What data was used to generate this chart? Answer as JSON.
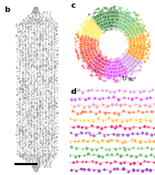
{
  "background_color": "#ffffff",
  "label_b": "b",
  "label_c": "c",
  "label_d": "d",
  "rotation_label": "90°",
  "ring_colors_cw": [
    "#228B22",
    "#228B22",
    "#4CAF50",
    "#66BB6A",
    "#8BC34A",
    "#CDDC39",
    "#FFEB3B",
    "#FFEB3B",
    "#FDD835",
    "#FFB300",
    "#FFA000",
    "#FF8F00",
    "#FF7043",
    "#FF5722",
    "#F44336",
    "#EF5350",
    "#E91E63",
    "#E91E63",
    "#D81B60",
    "#AB47BC",
    "#9C27B0",
    "#8E24AA",
    "#CE93D8",
    "#F48FB1",
    "#F8BBD0",
    "#FFD54F",
    "#FFCA28"
  ],
  "side_row_colors": [
    [
      "#CE93D8",
      "#F48FB1",
      "#CE93D8",
      "#AB47BC",
      "#9C27B0",
      "#CE93D8",
      "#F48FB1",
      "#E040FB",
      "#CE93D8",
      "#AB47BC",
      "#9C27B0",
      "#CE93D8",
      "#F48FB1",
      "#AB47BC",
      "#9C27B0"
    ],
    [
      "#FF7043",
      "#FF8A65",
      "#FF7043",
      "#FF5722",
      "#F4511E",
      "#FF7043",
      "#FF8A65",
      "#FF7043",
      "#FF5722",
      "#F4511E",
      "#FF7043",
      "#FF8A65",
      "#FF7043",
      "#FF5722",
      "#F4511E"
    ],
    [
      "#FFCA28",
      "#FFD54F",
      "#FFCA28",
      "#FFB300",
      "#FFA000",
      "#FFCA28",
      "#FFD54F",
      "#FFCA28",
      "#FFB300",
      "#FFA000",
      "#FFCA28",
      "#FFD54F",
      "#FFCA28",
      "#FFB300",
      "#FFA000"
    ],
    [
      "#E91E63",
      "#EC407A",
      "#E91E63",
      "#D81B60",
      "#C2185B",
      "#E91E63",
      "#EC407A",
      "#E91E63",
      "#D81B60",
      "#C2185B",
      "#E91E63",
      "#EC407A",
      "#E91E63",
      "#D81B60",
      "#C2185B"
    ],
    [
      "#AB47BC",
      "#BA68C8",
      "#AB47BC",
      "#9C27B0",
      "#8E24AA",
      "#AB47BC",
      "#BA68C8",
      "#AB47BC",
      "#9C27B0",
      "#8E24AA",
      "#AB47BC",
      "#BA68C8",
      "#AB47BC",
      "#9C27B0",
      "#8E24AA"
    ],
    [
      "#FFA726",
      "#FFB74D",
      "#FFA726",
      "#FF9800",
      "#F57C00",
      "#FFA726",
      "#FFB74D",
      "#FFA726",
      "#FF9800",
      "#F57C00",
      "#FFA726",
      "#FFB74D",
      "#FFA726",
      "#FF9800",
      "#F57C00"
    ],
    [
      "#66BB6A",
      "#81C784",
      "#66BB6A",
      "#43A047",
      "#388E3C",
      "#66BB6A",
      "#81C784",
      "#66BB6A",
      "#43A047",
      "#388E3C",
      "#66BB6A",
      "#81C784",
      "#66BB6A",
      "#43A047",
      "#388E3C"
    ],
    [
      "#E91E63",
      "#EC407A",
      "#E91E63",
      "#D81B60",
      "#C2185B",
      "#E91E63",
      "#EC407A",
      "#E91E63",
      "#D81B60",
      "#C2185B",
      "#E91E63",
      "#EC407A",
      "#E91E63",
      "#D81B60",
      "#C2185B"
    ],
    [
      "#9C27B0",
      "#AB47BC",
      "#9C27B0",
      "#7B1FA2",
      "#6A1B9A",
      "#9C27B0",
      "#AB47BC",
      "#9C27B0",
      "#7B1FA2",
      "#6A1B9A",
      "#9C27B0",
      "#AB47BC",
      "#9C27B0",
      "#7B1FA2",
      "#6A1B9A"
    ],
    [
      "#FFA726",
      "#FFB74D",
      "#FFA726",
      "#FF9800",
      "#F57C00",
      "#FFA726",
      "#FFB74D",
      "#FFA726",
      "#FF9800",
      "#F57C00",
      "#FFA726",
      "#FFB74D",
      "#FFA726",
      "#FF9800",
      "#F57C00"
    ],
    [
      "#4CAF50",
      "#66BB6A",
      "#4CAF50",
      "#388E3C",
      "#2E7D32",
      "#4CAF50",
      "#66BB6A",
      "#4CAF50",
      "#388E3C",
      "#2E7D32",
      "#4CAF50",
      "#66BB6A",
      "#4CAF50",
      "#388E3C",
      "#2E7D32"
    ],
    [
      "#E91E63",
      "#EC407A",
      "#E91E63",
      "#D81B60",
      "#C2185B",
      "#E91E63",
      "#EC407A",
      "#E91E63",
      "#D81B60",
      "#C2185B",
      "#E91E63",
      "#EC407A",
      "#E91E63",
      "#D81B60",
      "#C2185B"
    ]
  ],
  "virion_gray": 0.72
}
